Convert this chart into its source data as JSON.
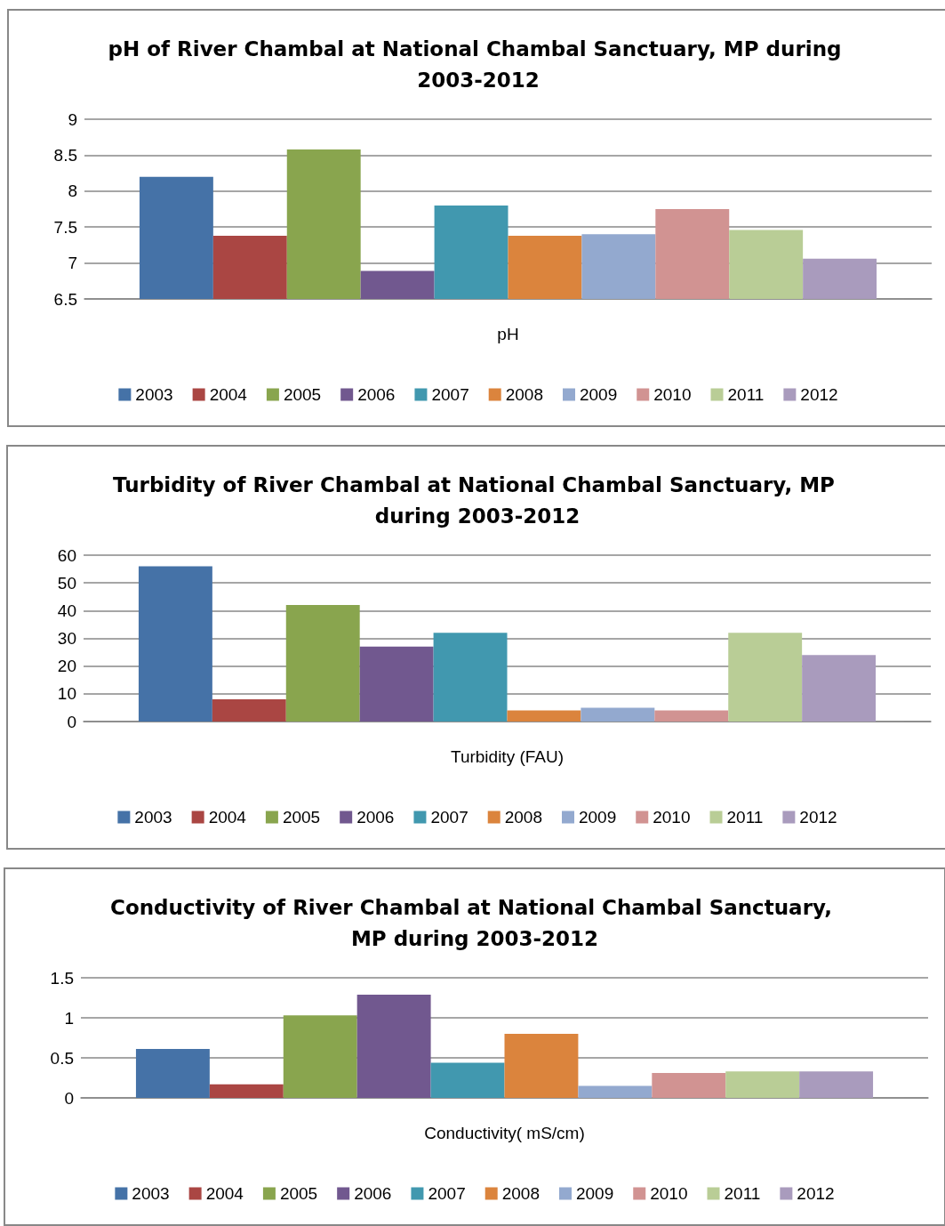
{
  "chart_data": [
    {
      "type": "bar",
      "title": "pH of River Chambal at National Chambal Sanctuary, MP during 2003-2012",
      "categories": [
        "pH"
      ],
      "ylim": [
        6.5,
        9
      ],
      "yticks": [
        6.5,
        7,
        7.5,
        8,
        8.5,
        9
      ],
      "grid": "y",
      "legend": "bottom",
      "series": [
        {
          "name": "2003",
          "color": "#4572a7",
          "values": [
            8.2
          ]
        },
        {
          "name": "2004",
          "color": "#aa4643",
          "values": [
            7.38
          ]
        },
        {
          "name": "2005",
          "color": "#89a54e",
          "values": [
            8.58
          ]
        },
        {
          "name": "2006",
          "color": "#71588f",
          "values": [
            6.89
          ]
        },
        {
          "name": "2007",
          "color": "#4198af",
          "values": [
            7.8
          ]
        },
        {
          "name": "2008",
          "color": "#db843d",
          "values": [
            7.38
          ]
        },
        {
          "name": "2009",
          "color": "#93a9cf",
          "values": [
            7.4
          ]
        },
        {
          "name": "2010",
          "color": "#d19392",
          "values": [
            7.75
          ]
        },
        {
          "name": "2011",
          "color": "#b9cd96",
          "values": [
            7.46
          ]
        },
        {
          "name": "2012",
          "color": "#a99bbd",
          "values": [
            7.06
          ]
        }
      ]
    },
    {
      "type": "bar",
      "title": "Turbidity of River Chambal at National Chambal Sanctuary, MP during 2003-2012",
      "categories": [
        "Turbidity (FAU)"
      ],
      "ylim": [
        0,
        60
      ],
      "yticks": [
        0,
        10,
        20,
        30,
        40,
        50,
        60
      ],
      "grid": "y",
      "legend": "bottom",
      "series": [
        {
          "name": "2003",
          "color": "#4572a7",
          "values": [
            56
          ]
        },
        {
          "name": "2004",
          "color": "#aa4643",
          "values": [
            8
          ]
        },
        {
          "name": "2005",
          "color": "#89a54e",
          "values": [
            42
          ]
        },
        {
          "name": "2006",
          "color": "#71588f",
          "values": [
            27
          ]
        },
        {
          "name": "2007",
          "color": "#4198af",
          "values": [
            32
          ]
        },
        {
          "name": "2008",
          "color": "#db843d",
          "values": [
            4
          ]
        },
        {
          "name": "2009",
          "color": "#93a9cf",
          "values": [
            5
          ]
        },
        {
          "name": "2010",
          "color": "#d19392",
          "values": [
            4
          ]
        },
        {
          "name": "2011",
          "color": "#b9cd96",
          "values": [
            32
          ]
        },
        {
          "name": "2012",
          "color": "#a99bbd",
          "values": [
            24
          ]
        }
      ]
    },
    {
      "type": "bar",
      "title": "Conductivity of River Chambal at National Chambal Sanctuary, MP during 2003-2012",
      "categories": [
        "Conductivity( mS/cm)"
      ],
      "ylim": [
        0,
        1.5
      ],
      "yticks": [
        0,
        0.5,
        1,
        1.5
      ],
      "grid": "y",
      "legend": "bottom",
      "series": [
        {
          "name": "2003",
          "color": "#4572a7",
          "values": [
            0.61
          ]
        },
        {
          "name": "2004",
          "color": "#aa4643",
          "values": [
            0.17
          ]
        },
        {
          "name": "2005",
          "color": "#89a54e",
          "values": [
            1.03
          ]
        },
        {
          "name": "2006",
          "color": "#71588f",
          "values": [
            1.29
          ]
        },
        {
          "name": "2007",
          "color": "#4198af",
          "values": [
            0.44
          ]
        },
        {
          "name": "2008",
          "color": "#db843d",
          "values": [
            0.8
          ]
        },
        {
          "name": "2009",
          "color": "#93a9cf",
          "values": [
            0.15
          ]
        },
        {
          "name": "2010",
          "color": "#d19392",
          "values": [
            0.31
          ]
        },
        {
          "name": "2011",
          "color": "#b9cd96",
          "values": [
            0.33
          ]
        },
        {
          "name": "2012",
          "color": "#a99bbd",
          "values": [
            0.33
          ]
        }
      ]
    }
  ]
}
